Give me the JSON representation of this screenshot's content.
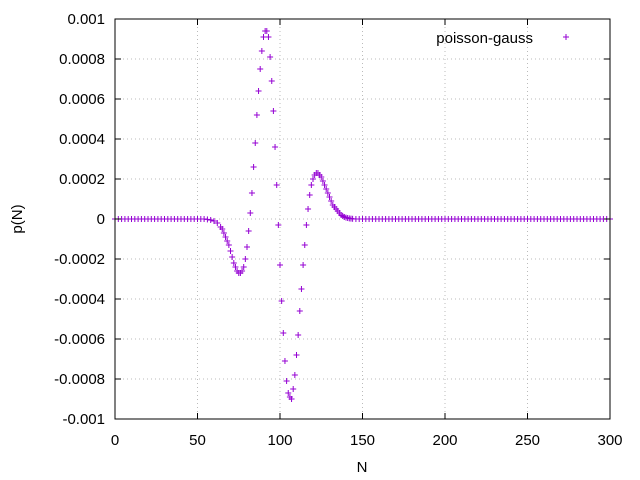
{
  "chart_data": {
    "type": "scatter",
    "title": "",
    "xlabel": "N",
    "ylabel": "p(N)",
    "xlim": [
      0,
      300
    ],
    "ylim": [
      -0.001,
      0.001
    ],
    "grid": true,
    "legend_position": "top-right",
    "marker": "+",
    "x_ticks": [
      "0",
      "50",
      "100",
      "150",
      "200",
      "250",
      "300"
    ],
    "y_ticks": [
      "-0.001",
      "-0.0008",
      "-0.0006",
      "-0.0004",
      "-0.0002",
      "0",
      "0.0002",
      "0.0004",
      "0.0006",
      "0.0008",
      "0.001"
    ],
    "series": [
      {
        "name": "poisson-gauss",
        "color": "#9400d3",
        "points": [
          [
            0,
            0
          ],
          [
            2,
            0
          ],
          [
            4,
            0
          ],
          [
            6,
            0
          ],
          [
            8,
            0
          ],
          [
            10,
            0
          ],
          [
            12,
            0
          ],
          [
            14,
            0
          ],
          [
            16,
            0
          ],
          [
            18,
            0
          ],
          [
            20,
            0
          ],
          [
            22,
            0
          ],
          [
            24,
            0
          ],
          [
            26,
            0
          ],
          [
            28,
            0
          ],
          [
            30,
            0
          ],
          [
            32,
            0
          ],
          [
            34,
            0
          ],
          [
            36,
            0
          ],
          [
            38,
            0
          ],
          [
            40,
            0
          ],
          [
            42,
            0
          ],
          [
            44,
            0
          ],
          [
            46,
            0
          ],
          [
            48,
            0
          ],
          [
            50,
            0
          ],
          [
            52,
            0
          ],
          [
            54,
            0
          ],
          [
            56,
            -2e-06
          ],
          [
            58,
            -5e-06
          ],
          [
            60,
            -1e-05
          ],
          [
            62,
            -2e-05
          ],
          [
            64,
            -4e-05
          ],
          [
            65,
            -5e-05
          ],
          [
            66,
            -7e-05
          ],
          [
            67,
            -9e-05
          ],
          [
            68,
            -0.00011
          ],
          [
            69,
            -0.00013
          ],
          [
            70,
            -0.00016
          ],
          [
            71,
            -0.00019
          ],
          [
            72,
            -0.00022
          ],
          [
            73,
            -0.00024
          ],
          [
            74,
            -0.00026
          ],
          [
            75,
            -0.00027
          ],
          [
            76,
            -0.00027
          ],
          [
            77,
            -0.00026
          ],
          [
            78,
            -0.00024
          ],
          [
            79,
            -0.0002
          ],
          [
            80,
            -0.00014
          ],
          [
            81,
            -6e-05
          ],
          [
            82,
            3e-05
          ],
          [
            83,
            0.00013
          ],
          [
            84,
            0.00026
          ],
          [
            85,
            0.00038
          ],
          [
            86,
            0.00052
          ],
          [
            87,
            0.00064
          ],
          [
            88,
            0.00075
          ],
          [
            89,
            0.00084
          ],
          [
            90,
            0.00091
          ],
          [
            91,
            0.00094
          ],
          [
            92,
            0.00094
          ],
          [
            93,
            0.00091
          ],
          [
            94,
            0.00081
          ],
          [
            95,
            0.00069
          ],
          [
            96,
            0.00054
          ],
          [
            97,
            0.00036
          ],
          [
            98,
            0.00017
          ],
          [
            99,
            -3e-05
          ],
          [
            100,
            -0.00023
          ],
          [
            101,
            -0.00041
          ],
          [
            102,
            -0.00057
          ],
          [
            103,
            -0.00071
          ],
          [
            104,
            -0.00081
          ],
          [
            105,
            -0.00087
          ],
          [
            106,
            -0.00089
          ],
          [
            107,
            -0.0009
          ],
          [
            108,
            -0.00085
          ],
          [
            109,
            -0.00078
          ],
          [
            110,
            -0.00068
          ],
          [
            111,
            -0.00058
          ],
          [
            112,
            -0.00046
          ],
          [
            113,
            -0.00035
          ],
          [
            114,
            -0.00023
          ],
          [
            115,
            -0.00013
          ],
          [
            116,
            -3e-05
          ],
          [
            117,
            5e-05
          ],
          [
            118,
            0.00012
          ],
          [
            119,
            0.00017
          ],
          [
            120,
            0.0002
          ],
          [
            121,
            0.00022
          ],
          [
            122,
            0.00023
          ],
          [
            123,
            0.00023
          ],
          [
            124,
            0.00022
          ],
          [
            125,
            0.00021
          ],
          [
            126,
            0.00019
          ],
          [
            127,
            0.00017
          ],
          [
            128,
            0.00015
          ],
          [
            129,
            0.00013
          ],
          [
            130,
            0.00011
          ],
          [
            131,
            9e-05
          ],
          [
            132,
            7e-05
          ],
          [
            133,
            6e-05
          ],
          [
            134,
            5e-05
          ],
          [
            135,
            4e-05
          ],
          [
            136,
            3e-05
          ],
          [
            137,
            2e-05
          ],
          [
            138,
            1.5e-05
          ],
          [
            139,
            1e-05
          ],
          [
            140,
            7e-06
          ],
          [
            141,
            5e-06
          ],
          [
            142,
            3e-06
          ],
          [
            143,
            2e-06
          ],
          [
            144,
            1e-06
          ],
          [
            146,
            0
          ],
          [
            148,
            0
          ],
          [
            150,
            0
          ],
          [
            152,
            0
          ],
          [
            154,
            0
          ],
          [
            156,
            0
          ],
          [
            158,
            0
          ],
          [
            160,
            0
          ],
          [
            162,
            0
          ],
          [
            164,
            0
          ],
          [
            166,
            0
          ],
          [
            168,
            0
          ],
          [
            170,
            0
          ],
          [
            172,
            0
          ],
          [
            174,
            0
          ],
          [
            176,
            0
          ],
          [
            178,
            0
          ],
          [
            180,
            0
          ],
          [
            182,
            0
          ],
          [
            184,
            0
          ],
          [
            186,
            0
          ],
          [
            188,
            0
          ],
          [
            190,
            0
          ],
          [
            192,
            0
          ],
          [
            194,
            0
          ],
          [
            196,
            0
          ],
          [
            198,
            0
          ],
          [
            200,
            0
          ],
          [
            202,
            0
          ],
          [
            204,
            0
          ],
          [
            206,
            0
          ],
          [
            208,
            0
          ],
          [
            210,
            0
          ],
          [
            212,
            0
          ],
          [
            214,
            0
          ],
          [
            216,
            0
          ],
          [
            218,
            0
          ],
          [
            220,
            0
          ],
          [
            222,
            0
          ],
          [
            224,
            0
          ],
          [
            226,
            0
          ],
          [
            228,
            0
          ],
          [
            230,
            0
          ],
          [
            232,
            0
          ],
          [
            234,
            0
          ],
          [
            236,
            0
          ],
          [
            238,
            0
          ],
          [
            240,
            0
          ],
          [
            242,
            0
          ],
          [
            244,
            0
          ],
          [
            246,
            0
          ],
          [
            248,
            0
          ],
          [
            250,
            0
          ],
          [
            252,
            0
          ],
          [
            254,
            0
          ],
          [
            256,
            0
          ],
          [
            258,
            0
          ],
          [
            260,
            0
          ],
          [
            262,
            0
          ],
          [
            264,
            0
          ],
          [
            266,
            0
          ],
          [
            268,
            0
          ],
          [
            270,
            0
          ],
          [
            272,
            0
          ],
          [
            274,
            0
          ],
          [
            276,
            0
          ],
          [
            278,
            0
          ],
          [
            280,
            0
          ],
          [
            282,
            0
          ],
          [
            284,
            0
          ],
          [
            286,
            0
          ],
          [
            288,
            0
          ],
          [
            290,
            0
          ],
          [
            292,
            0
          ],
          [
            294,
            0
          ],
          [
            296,
            0
          ],
          [
            298,
            0
          ],
          [
            300,
            0
          ]
        ]
      }
    ]
  }
}
